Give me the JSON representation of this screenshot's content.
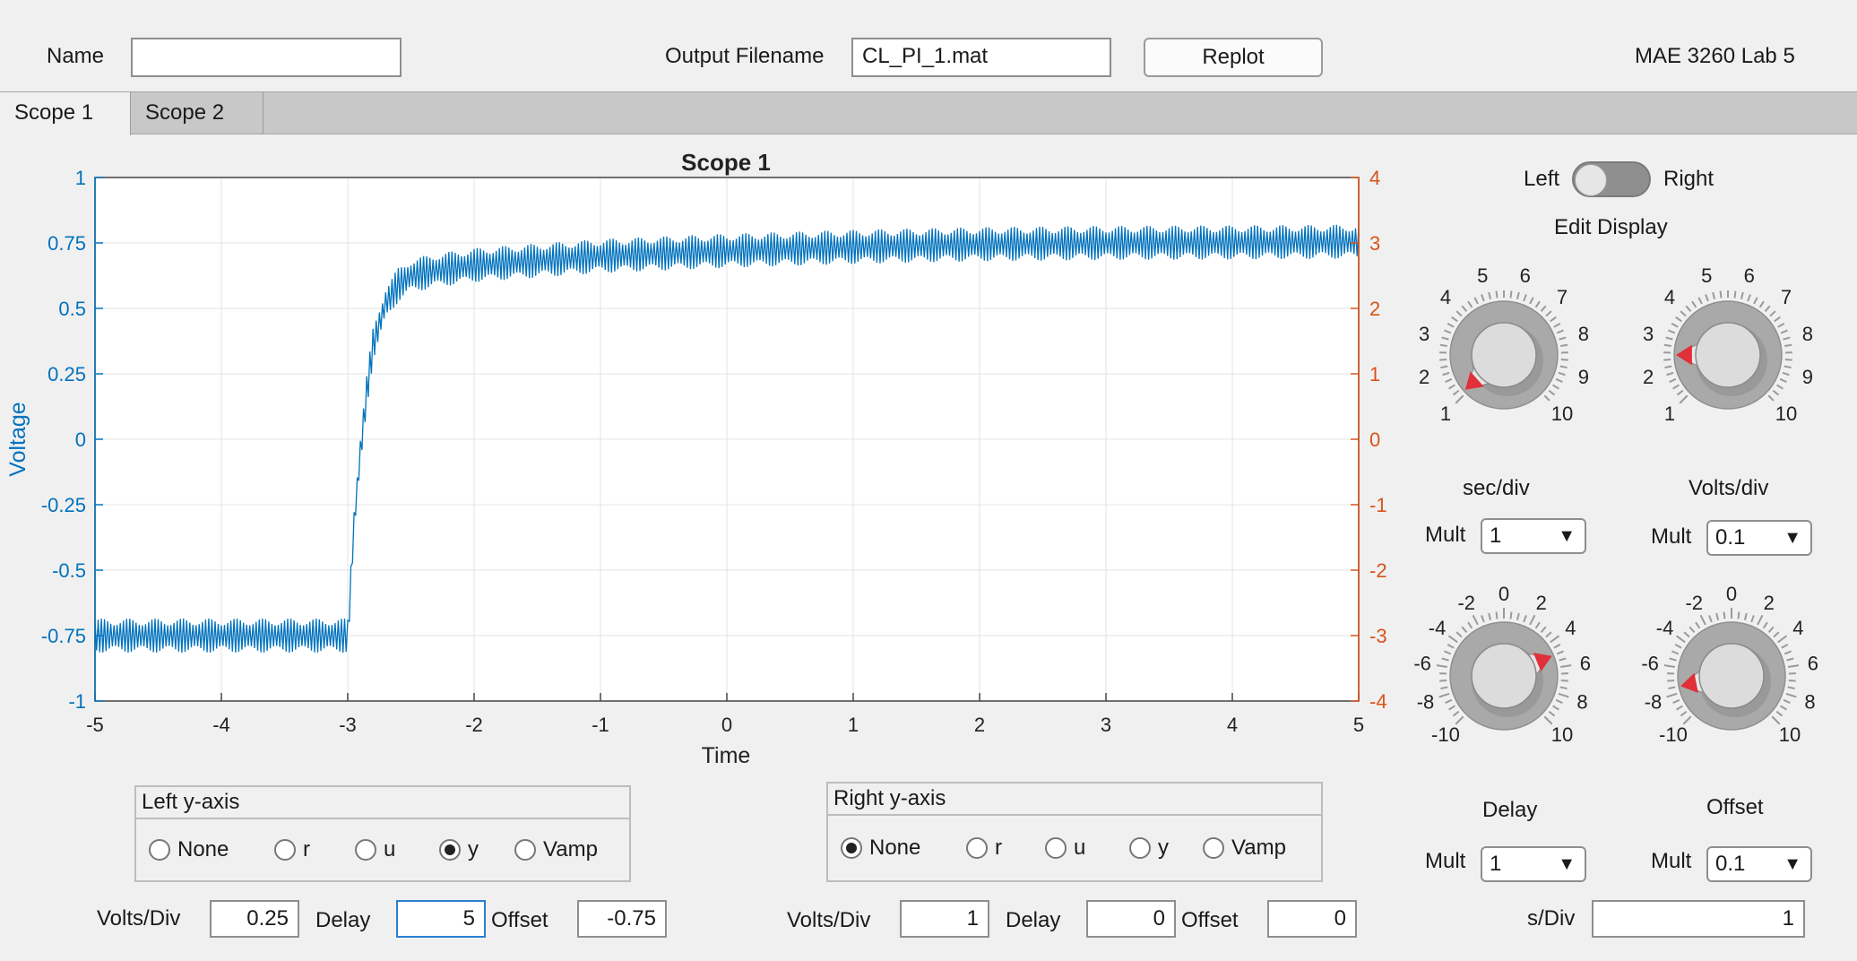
{
  "header": {
    "name_label": "Name",
    "name_value": "",
    "output_label": "Output Filename",
    "output_value": "CL_PI_1.mat",
    "replot_label": "Replot",
    "app_title": "MAE 3260 Lab 5"
  },
  "tabs": [
    {
      "label": "Scope 1",
      "active": true
    },
    {
      "label": "Scope 2",
      "active": false
    }
  ],
  "chart_data": {
    "type": "line",
    "title": "Scope 1",
    "xlabel": "Time",
    "ylabel_left": "Voltage",
    "ylabel_right": "",
    "xlim": [
      -5,
      5
    ],
    "ylim_left": [
      -1,
      1
    ],
    "ylim_right": [
      -4,
      4
    ],
    "x_ticks": [
      -5,
      -4,
      -3,
      -2,
      -1,
      0,
      1,
      2,
      3,
      4,
      5
    ],
    "y_ticks_left": [
      "1",
      "0.75",
      "0.5",
      "0.25",
      "0",
      "-0.25",
      "-0.5",
      "-0.75",
      "-1"
    ],
    "y_ticks_right": [
      "4",
      "3",
      "2",
      "1",
      "0",
      "-1",
      "-2",
      "-3",
      "-4"
    ],
    "grid": true,
    "colors": {
      "series": "#0072bd",
      "left_axis": "#0072bd",
      "right_axis": "#d95319"
    },
    "series": [
      {
        "axis": "left",
        "description_points": {
          "x": [
            -5,
            -3.0,
            -2.95,
            -2.9,
            -2.85,
            -2.8,
            -2.7,
            -2.6,
            -2.5,
            -2.3,
            -2.0,
            -1.0,
            0,
            1,
            2,
            3,
            4,
            5
          ],
          "y": [
            -0.75,
            -0.75,
            -0.32,
            -0.05,
            0.18,
            0.36,
            0.52,
            0.59,
            0.625,
            0.645,
            0.665,
            0.7,
            0.72,
            0.735,
            0.745,
            0.75,
            0.752,
            0.755
          ]
        },
        "noise_amplitude": 0.065
      }
    ]
  },
  "right_panel": {
    "toggle_left": "Left",
    "toggle_right": "Right",
    "edit_display": "Edit Display",
    "knob_scale_1_10": [
      "1",
      "2",
      "3",
      "4",
      "5",
      "6",
      "7",
      "8",
      "9",
      "10"
    ],
    "knob_scale_pm10": [
      "-10",
      "-8",
      "-6",
      "-4",
      "-2",
      "0",
      "2",
      "4",
      "6",
      "8",
      "10"
    ],
    "knobs": [
      {
        "label": "sec/div",
        "value": 1.1
      },
      {
        "label": "Volts/div",
        "value": 2.5
      },
      {
        "label": "Delay",
        "value": 5
      },
      {
        "label": "Offset",
        "value": -7.5
      }
    ],
    "mult_label": "Mult",
    "sec_mult": "1",
    "volts_mult": "0.1",
    "delay_mult": "1",
    "offset_mult": "0.1",
    "sdiv_label": "s/Div",
    "sdiv_value": "1"
  },
  "left_axis_panel": {
    "title": "Left y-axis",
    "options": [
      "None",
      "r",
      "u",
      "y",
      "Vamp"
    ],
    "selected": "y"
  },
  "right_axis_panel": {
    "title": "Right y-axis",
    "options": [
      "None",
      "r",
      "u",
      "y",
      "Vamp"
    ],
    "selected": "None"
  },
  "bottom": {
    "volts_label": "Volts/Div",
    "delay_label": "Delay",
    "offset_label": "Offset",
    "left_volts": "0.25",
    "left_delay": "5",
    "left_offset": "-0.75",
    "right_volts": "1",
    "right_delay": "0",
    "right_offset": "0"
  }
}
